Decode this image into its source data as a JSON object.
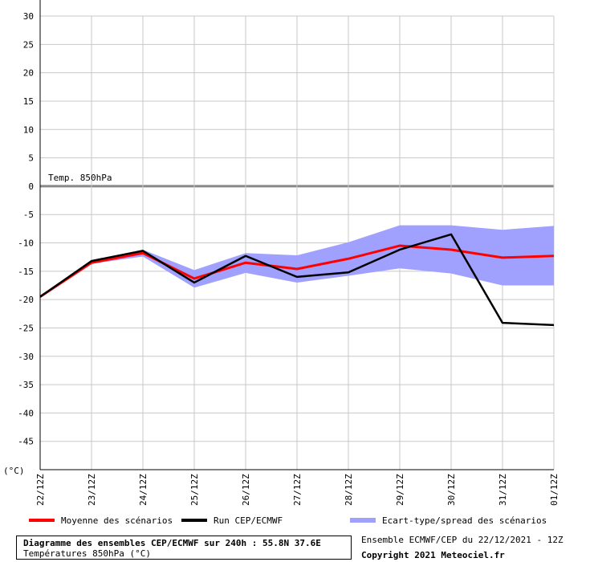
{
  "chart_data": {
    "type": "line",
    "inner_label": "Temp. 850hPa",
    "unit_label": "(°C)",
    "ylim": [
      -50,
      30
    ],
    "yticks": [
      30,
      25,
      20,
      15,
      10,
      5,
      0,
      -5,
      -10,
      -15,
      -20,
      -25,
      -30,
      -35,
      -40,
      -45
    ],
    "x": [
      "22/12Z",
      "23/12Z",
      "24/12Z",
      "25/12Z",
      "26/12Z",
      "27/12Z",
      "28/12Z",
      "29/12Z",
      "30/12Z",
      "31/12Z",
      "01/12Z"
    ],
    "x_steps": [
      0,
      1,
      2,
      3,
      4,
      5,
      6,
      7,
      8,
      9,
      10
    ],
    "series": [
      {
        "name": "Moyenne des scénarios",
        "color": "#ff0000",
        "x": [
          0,
          1,
          2,
          3,
          4,
          5,
          6,
          7,
          8,
          9,
          10
        ],
        "values": [
          -19.5,
          -13.5,
          -11.8,
          -16.3,
          -13.5,
          -14.6,
          -12.8,
          -10.5,
          -11.2,
          -12.6,
          -12.3
        ]
      },
      {
        "name": "Run CEP/ECMWF",
        "color": "#000000",
        "x": [
          0,
          1,
          2,
          3,
          4,
          5,
          6,
          7,
          8,
          9,
          10
        ],
        "values": [
          -19.5,
          -13.2,
          -11.4,
          -17.0,
          -12.3,
          -16.0,
          -15.2,
          -11.2,
          -8.5,
          -24.1,
          -24.5
        ]
      }
    ],
    "spread": {
      "name": "Ecart-type/spread des scénarios",
      "color": "#a0a0ff",
      "x": [
        0,
        1,
        2,
        3,
        4,
        5,
        6,
        7,
        8,
        9,
        10
      ],
      "upper": [
        -19.5,
        -13.2,
        -11.2,
        -14.8,
        -11.8,
        -12.2,
        -9.9,
        -6.9,
        -6.9,
        -7.7,
        -7.0
      ],
      "lower": [
        -19.5,
        -13.7,
        -12.4,
        -17.9,
        -15.3,
        -17.0,
        -15.8,
        -14.5,
        -15.4,
        -17.5,
        -17.5
      ]
    },
    "grid": true
  },
  "legend": {
    "mean": {
      "label": "Moyenne des scénarios",
      "color": "#ff0000"
    },
    "run": {
      "label": "Run CEP/ECMWF",
      "color": "#000000"
    },
    "spread": {
      "label": "Ecart-type/spread des scénarios",
      "color": "#a0a0ff"
    }
  },
  "info": {
    "title": "Diagramme des ensembles CEP/ECMWF sur 240h : 55.8N 37.6E",
    "subtitle": "Températures 850hPa (°C)"
  },
  "source": "Ensemble ECMWF/CEP du 22/12/2021 - 12Z",
  "copyright": "Copyright 2021 Meteociel.fr"
}
